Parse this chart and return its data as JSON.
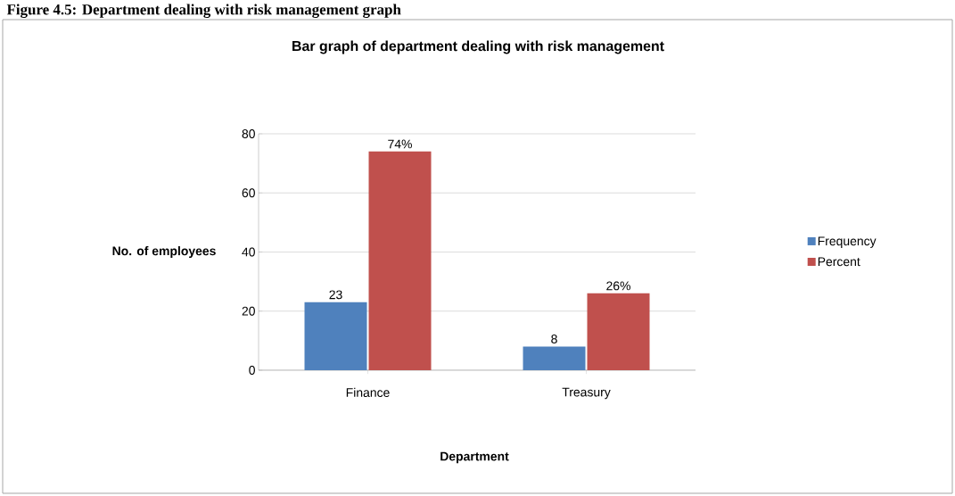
{
  "chart_data": {
    "type": "bar",
    "title": "Bar graph of department dealing with risk management",
    "xlabel": "Department",
    "ylabel": "No. of employees",
    "categories": [
      "Finance",
      "Treasury"
    ],
    "series": [
      {
        "name": "Frequency",
        "color": "#4f81bd",
        "values": [
          23,
          8
        ],
        "value_labels": [
          "23",
          "8"
        ]
      },
      {
        "name": "Percent",
        "color": "#c0504d",
        "values": [
          74,
          26
        ],
        "value_labels": [
          "74%",
          "26%"
        ]
      }
    ],
    "ylim": [
      0,
      80
    ],
    "yticks": [
      0,
      20,
      40,
      60,
      80
    ],
    "grid": "y",
    "legend": "right",
    "annotations": [
      "Figure 4.5: Department dealing with risk management graph"
    ]
  }
}
